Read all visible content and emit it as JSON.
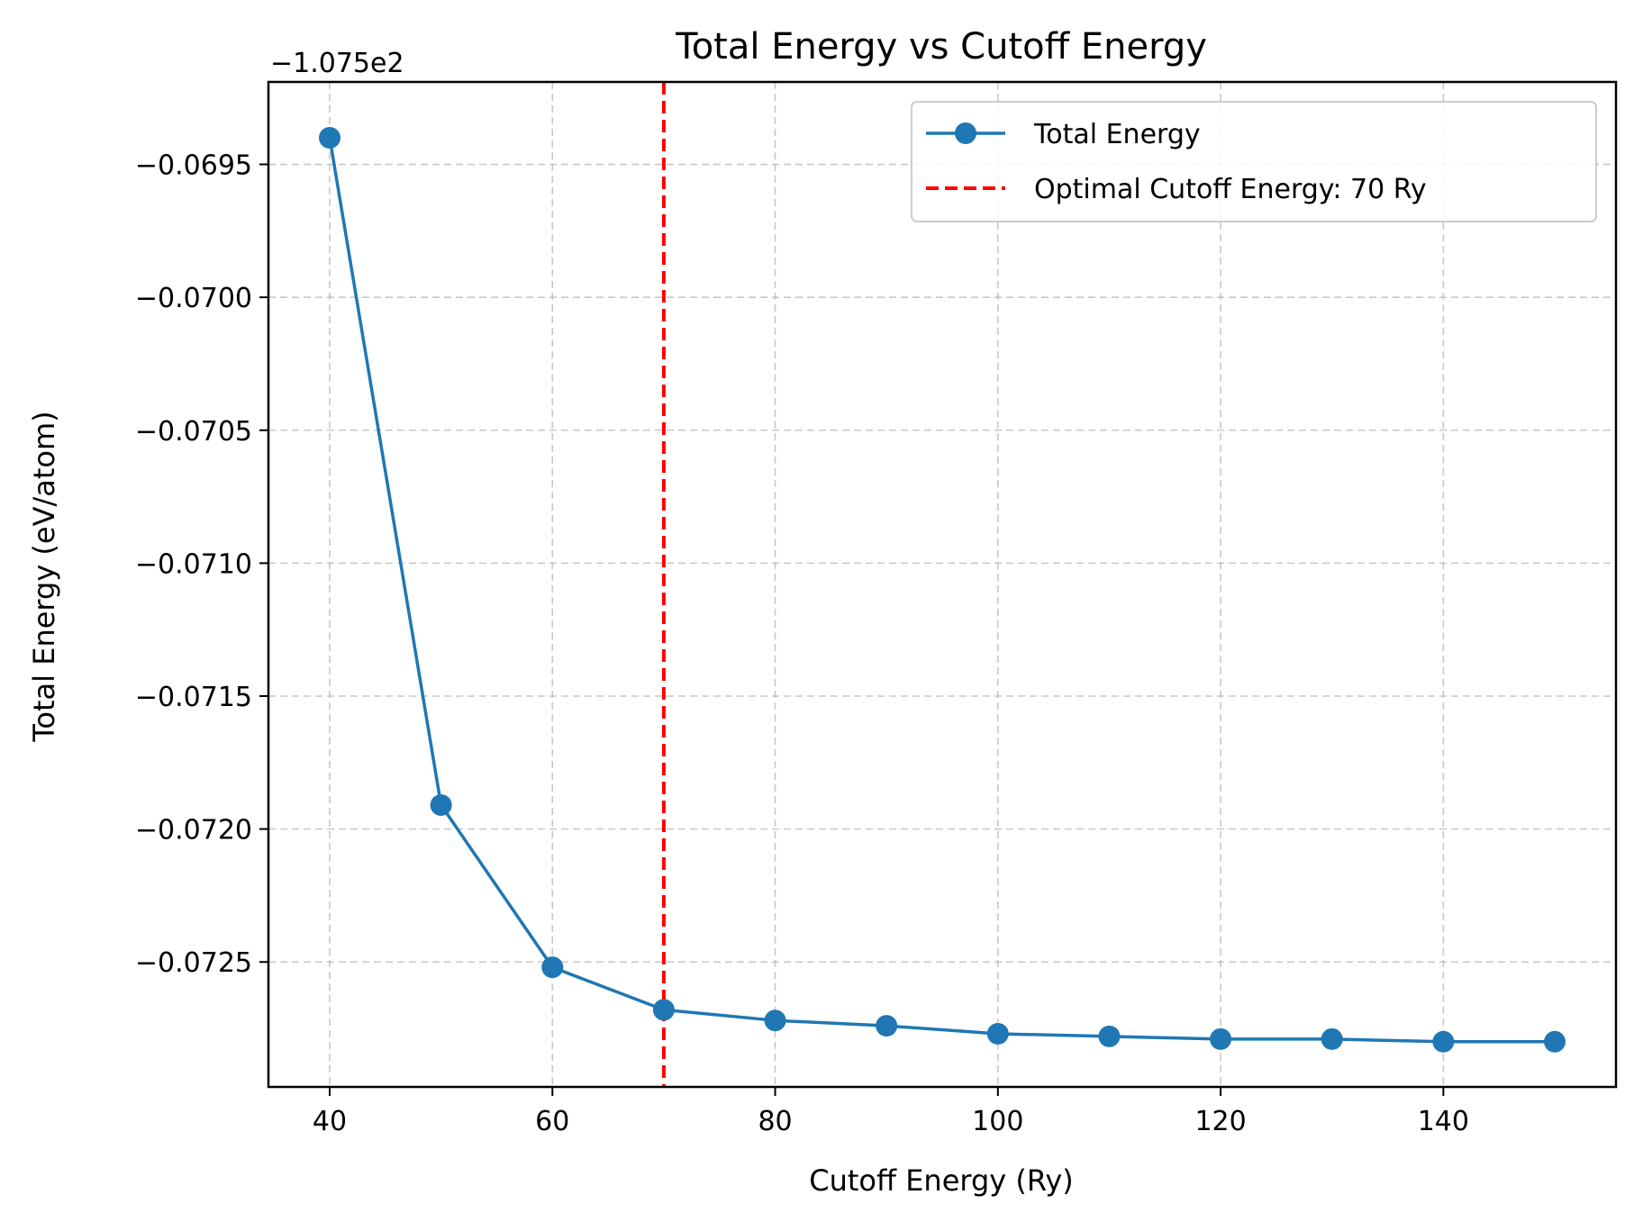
{
  "chart_data": {
    "type": "line",
    "title": "Total Energy vs Cutoff Energy",
    "xlabel": "Cutoff Energy (Ry)",
    "ylabel": "Total Energy (eV/atom)",
    "offset_label": "−1.075e2",
    "x_ticks": [
      40,
      60,
      80,
      100,
      120,
      140
    ],
    "x_tick_labels": [
      "40",
      "60",
      "80",
      "100",
      "120",
      "140"
    ],
    "y_ticks": [
      -0.0695,
      -0.07,
      -0.0705,
      -0.071,
      -0.0715,
      -0.072,
      -0.0725
    ],
    "y_tick_labels": [
      "−0.0695",
      "−0.0700",
      "−0.0705",
      "−0.0710",
      "−0.0715",
      "−0.0720",
      "−0.0725"
    ],
    "xlim": [
      34.5,
      155.5
    ],
    "ylim": [
      -0.07297,
      -0.06919
    ],
    "grid": true,
    "legend_position": "top-right",
    "series": [
      {
        "name": "Total Energy",
        "color": "#1f77b4",
        "marker": "circle",
        "x": [
          40,
          50,
          60,
          70,
          80,
          90,
          100,
          110,
          120,
          130,
          140,
          150
        ],
        "y": [
          -0.0694,
          -0.07191,
          -0.07252,
          -0.07268,
          -0.07272,
          -0.07274,
          -0.07277,
          -0.07278,
          -0.07279,
          -0.07279,
          -0.0728,
          -0.0728
        ]
      }
    ],
    "annotations": [
      {
        "type": "vline",
        "x": 70,
        "color": "#ff0000",
        "style": "dashed",
        "label": "Optimal Cutoff Energy: 70 Ry"
      }
    ]
  }
}
